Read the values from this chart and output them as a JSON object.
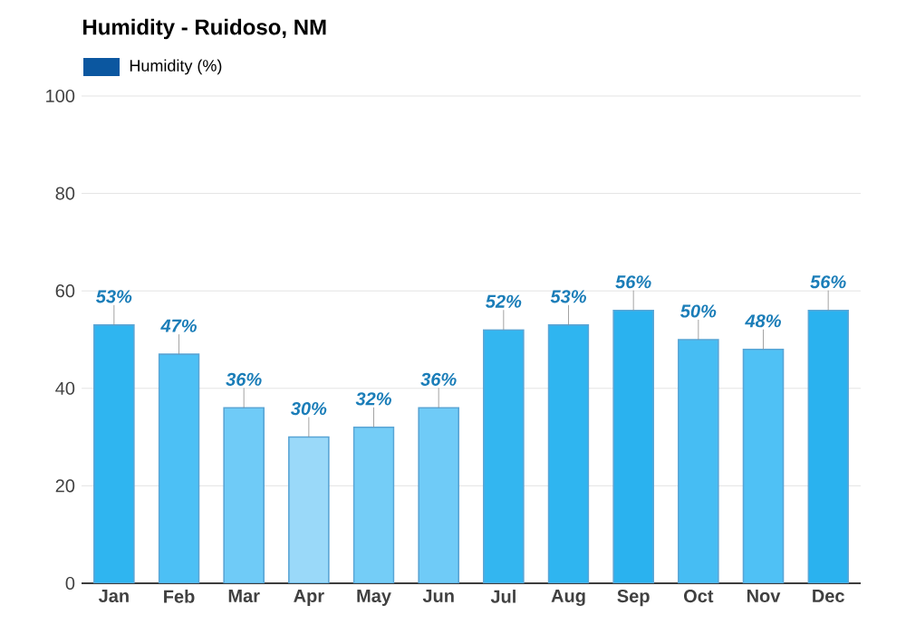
{
  "chart_data": {
    "type": "bar",
    "title": "Humidity - Ruidoso, NM",
    "categories": [
      "Jan",
      "Feb",
      "Mar",
      "Apr",
      "May",
      "Jun",
      "Jul",
      "Aug",
      "Sep",
      "Oct",
      "Nov",
      "Dec"
    ],
    "series": [
      {
        "name": "Humidity (%)",
        "color": "#0b57a0",
        "values": [
          53,
          47,
          36,
          30,
          32,
          36,
          52,
          53,
          56,
          50,
          48,
          56
        ],
        "colors": [
          "#2fb5f0",
          "#4cc0f5",
          "#6fcbf7",
          "#9ad9f9",
          "#74cdf7",
          "#6fcbf7",
          "#33b6f0",
          "#2fb5f0",
          "#2ab2ef",
          "#46bdf3",
          "#4fc1f5",
          "#2ab2ef"
        ],
        "value_labels": [
          "53%",
          "47%",
          "36%",
          "30%",
          "32%",
          "36%",
          "52%",
          "53%",
          "56%",
          "50%",
          "48%",
          "56%"
        ]
      }
    ],
    "ylim": [
      0,
      100
    ],
    "yticks": [
      0,
      20,
      40,
      60,
      80,
      100
    ],
    "grid": "y",
    "legend": "top left"
  }
}
